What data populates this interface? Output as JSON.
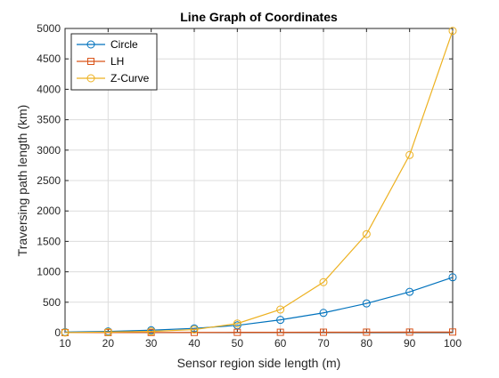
{
  "chart_data": {
    "type": "line",
    "title": "Line Graph of Coordinates",
    "xlabel": "Sensor region side length (m)",
    "ylabel": "Traversing path length (km)",
    "x": [
      10,
      20,
      30,
      40,
      50,
      60,
      70,
      80,
      90,
      100
    ],
    "xlim": [
      10,
      100
    ],
    "ylim": [
      0,
      5000
    ],
    "xticks": [
      "10",
      "20",
      "30",
      "40",
      "50",
      "60",
      "70",
      "80",
      "90",
      "100"
    ],
    "yticks": [
      "0",
      "500",
      "1000",
      "1500",
      "2000",
      "2500",
      "3000",
      "3500",
      "4000",
      "4500",
      "5000"
    ],
    "grid": true,
    "legend_position": "top-left",
    "series": [
      {
        "name": "Circle",
        "color": "#0072BD",
        "marker": "circle",
        "values": [
          9,
          20,
          40,
          70,
          120,
          210,
          325,
          480,
          670,
          910
        ]
      },
      {
        "name": "LH",
        "color": "#D95319",
        "marker": "square",
        "values": [
          1,
          2,
          3,
          4,
          5,
          6,
          7,
          8,
          9,
          10
        ]
      },
      {
        "name": "Z-Curve",
        "color": "#EDB120",
        "marker": "circle",
        "values": [
          1,
          10,
          20,
          50,
          150,
          380,
          830,
          1620,
          2920,
          4960
        ]
      }
    ]
  }
}
